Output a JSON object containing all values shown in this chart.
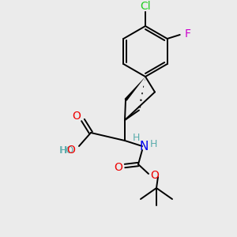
{
  "background_color": "#ebebeb",
  "atom_colors": {
    "C": "#000000",
    "H": "#5aacac",
    "N": "#0000ee",
    "O": "#ee0000",
    "Cl": "#22cc22",
    "F": "#cc00cc"
  },
  "bond_color": "#000000",
  "bond_width": 1.4
}
